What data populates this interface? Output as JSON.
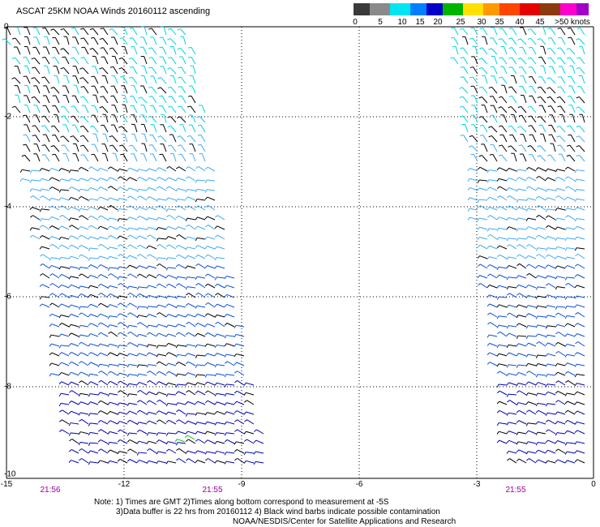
{
  "title": "ASCAT 25KM NOAA Winds 20160112 ascending",
  "legend": {
    "colors": [
      "#3a3a3a",
      "#8a8a8a",
      "#00e6f0",
      "#0080ff",
      "#0000c8",
      "#00b400",
      "#ffe000",
      "#ff9900",
      "#ff4400",
      "#e60000",
      "#8b3a10",
      "#ff00cc",
      "#a000c8",
      "#60007a"
    ],
    "labels": [
      "0",
      "5",
      "10",
      "15",
      "20",
      "25",
      "30",
      "35",
      "40",
      "45",
      ">50 knots"
    ]
  },
  "map": {
    "lat_labels": [
      "0",
      "-2",
      "-4",
      "-6",
      "-8",
      "-10"
    ],
    "lon_labels": [
      "-15",
      "-12",
      "-9",
      "-6",
      "-3",
      "0"
    ],
    "times": [
      "21:56",
      "21:55",
      "21:55"
    ],
    "wind_colors": {
      "contaminated": "#000000",
      "light": "#00d2e6",
      "medium": "#3fa9f5",
      "strong": "#0a4fd8",
      "strongest": "#0000b4",
      "green": "#00c800"
    }
  },
  "notes": [
    "Note: 1) Times are GMT 2)Times along bottom correspond to measurement at -5S",
    "3)Data buffer is 22 hrs from 20160112 4) Black wind barbs indicate possible contamination",
    "NOAA/NESDIS/Center for Satellite Applications and Research"
  ]
}
